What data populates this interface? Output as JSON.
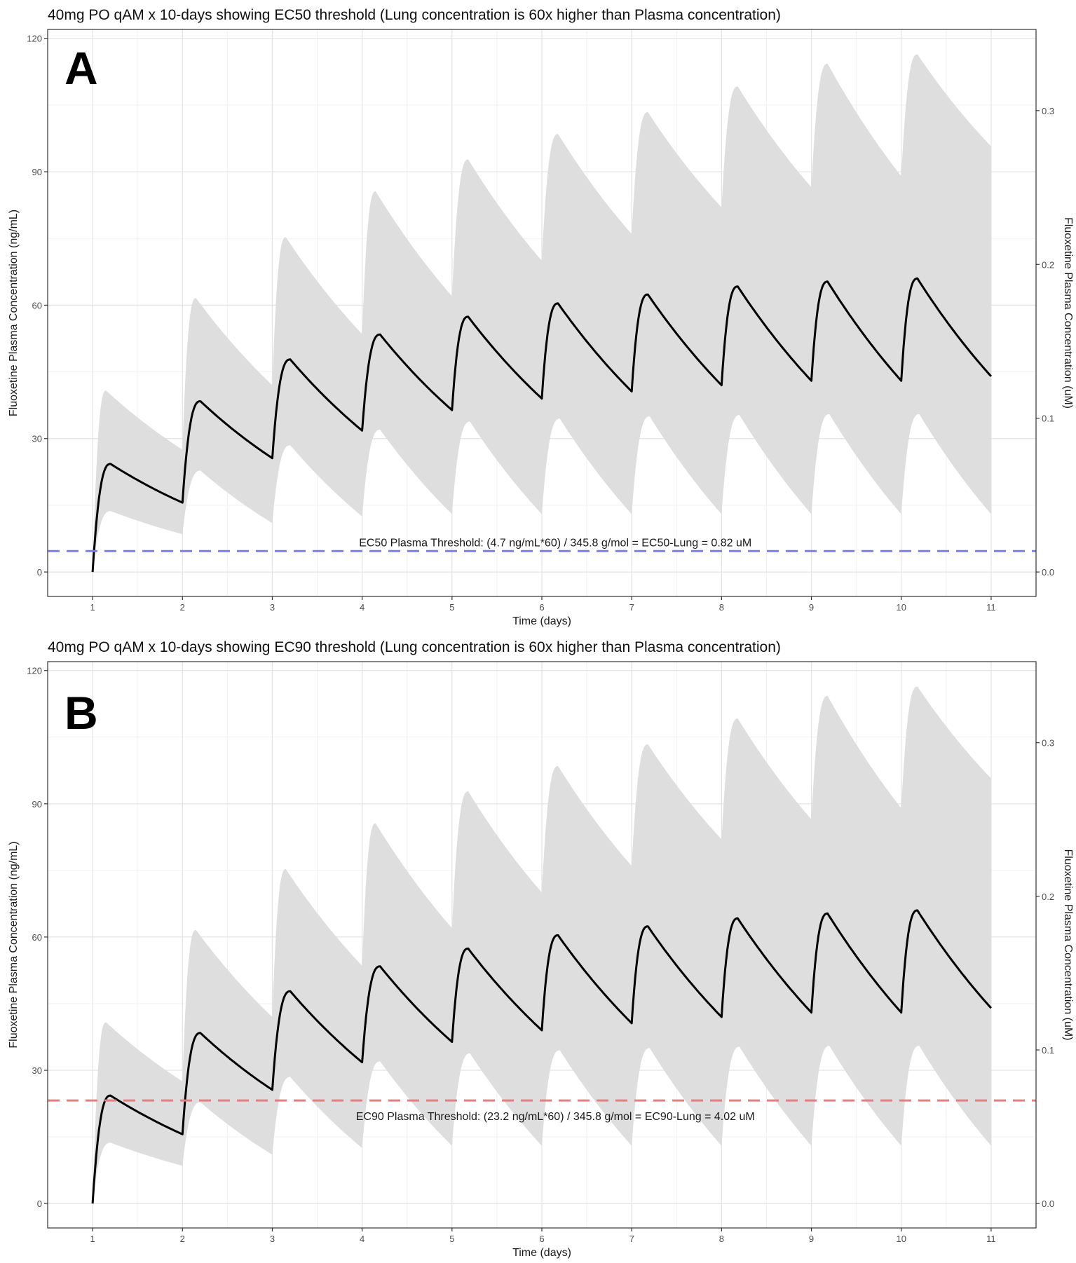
{
  "chart_data": [
    {
      "type": "line",
      "panel_letter": "A",
      "title": "40mg PO qAM x 10-days showing EC50 threshold (Lung concentration is 60x higher than Plasma concentration)",
      "xlabel": "Time (days)",
      "ylabel": "Fluoxetine Plasma Concentration (ng/mL)",
      "y2label": "Fluoxetine Plasma Concentration (uM)",
      "xlim": [
        0.5,
        11.5
      ],
      "ylim": [
        -5.5,
        122
      ],
      "y2lim": [
        -0.0159,
        0.3528
      ],
      "x_ticks": [
        1,
        2,
        3,
        4,
        5,
        6,
        7,
        8,
        9,
        10,
        11
      ],
      "y_ticks": [
        0,
        30,
        60,
        90,
        120
      ],
      "y2_ticks": [
        0.0,
        0.1,
        0.2,
        0.3
      ],
      "y2_tick_labels": [
        "0.0",
        "0.1",
        "0.2",
        "0.3"
      ],
      "grid": true,
      "series": [
        {
          "role": "median",
          "color": "#000000",
          "peaks": [
            [
              1.2,
              24.3
            ],
            [
              2.2,
              38.4
            ],
            [
              3.2,
              47.8
            ],
            [
              4.2,
              53.4
            ],
            [
              5.18,
              57.4
            ],
            [
              6.18,
              60.4
            ],
            [
              7.18,
              62.4
            ],
            [
              8.18,
              64.2
            ],
            [
              9.18,
              65.3
            ],
            [
              10.18,
              66.0
            ]
          ],
          "troughs": [
            [
              1.0,
              0.0
            ],
            [
              2.0,
              15.6
            ],
            [
              3.0,
              25.6
            ],
            [
              4.0,
              31.8
            ],
            [
              5.0,
              36.4
            ],
            [
              6.0,
              39.0
            ],
            [
              7.0,
              40.6
            ],
            [
              8.0,
              42.0
            ],
            [
              9.0,
              43.0
            ],
            [
              10.0,
              43.0
            ],
            [
              11.0,
              44.0
            ]
          ]
        },
        {
          "role": "upper bound of shaded interval",
          "color": "#dcdcdc",
          "peaks": [
            [
              1.15,
              40.8
            ],
            [
              2.15,
              61.6
            ],
            [
              3.15,
              75.3
            ],
            [
              4.15,
              85.6
            ],
            [
              5.18,
              92.8
            ],
            [
              6.18,
              98.5
            ],
            [
              7.18,
              103.4
            ],
            [
              8.18,
              109.2
            ],
            [
              9.18,
              114.3
            ],
            [
              10.18,
              116.4
            ]
          ],
          "troughs": [
            [
              1.0,
              0.0
            ],
            [
              2.0,
              27.5
            ],
            [
              3.0,
              42.0
            ],
            [
              4.0,
              53.5
            ],
            [
              5.0,
              62.0
            ],
            [
              6.0,
              70.0
            ],
            [
              7.0,
              76.0
            ],
            [
              8.0,
              82.0
            ],
            [
              9.0,
              86.5
            ],
            [
              10.0,
              89.0
            ],
            [
              11.0,
              95.7
            ]
          ]
        },
        {
          "role": "lower bound of shaded interval",
          "color": "#dcdcdc",
          "peaks": [
            [
              1.2,
              13.7
            ],
            [
              2.2,
              22.8
            ],
            [
              3.2,
              28.5
            ],
            [
              4.2,
              32.0
            ],
            [
              5.2,
              33.8
            ],
            [
              6.2,
              34.5
            ],
            [
              7.2,
              35.0
            ],
            [
              8.2,
              35.3
            ],
            [
              9.2,
              35.5
            ],
            [
              10.2,
              35.5
            ]
          ],
          "troughs": [
            [
              1.0,
              0.0
            ],
            [
              2.0,
              8.5
            ],
            [
              3.0,
              11.0
            ],
            [
              4.0,
              12.5
            ],
            [
              5.0,
              13.0
            ],
            [
              6.0,
              13.0
            ],
            [
              7.0,
              13.0
            ],
            [
              8.0,
              13.0
            ],
            [
              9.0,
              13.0
            ],
            [
              10.0,
              13.0
            ],
            [
              11.0,
              13.0
            ]
          ]
        }
      ],
      "threshold": {
        "value": 4.7,
        "color": "#7b7bf7",
        "style": "dashed",
        "label": "EC50 Plasma Threshold: (4.7 ng/mL*60) / 345.8 g/mol = EC50-Lung = 0.82 uM",
        "label_side": "above"
      }
    },
    {
      "type": "line",
      "panel_letter": "B",
      "title": "40mg PO qAM x 10-days showing EC90 threshold (Lung concentration is 60x higher than Plasma concentration)",
      "xlabel": "Time (days)",
      "ylabel": "Fluoxetine Plasma Concentration (ng/mL)",
      "y2label": "Fluoxetine Plasma Concentration (uM)",
      "xlim": [
        0.5,
        11.5
      ],
      "ylim": [
        -5.5,
        122
      ],
      "y2lim": [
        -0.0159,
        0.3528
      ],
      "x_ticks": [
        1,
        2,
        3,
        4,
        5,
        6,
        7,
        8,
        9,
        10,
        11
      ],
      "y_ticks": [
        0,
        30,
        60,
        90,
        120
      ],
      "y2_ticks": [
        0.0,
        0.1,
        0.2,
        0.3
      ],
      "y2_tick_labels": [
        "0.0",
        "0.1",
        "0.2",
        "0.3"
      ],
      "grid": true,
      "series": [
        {
          "role": "median",
          "color": "#000000",
          "peaks": [
            [
              1.2,
              24.3
            ],
            [
              2.2,
              38.4
            ],
            [
              3.2,
              47.8
            ],
            [
              4.2,
              53.4
            ],
            [
              5.18,
              57.4
            ],
            [
              6.18,
              60.4
            ],
            [
              7.18,
              62.4
            ],
            [
              8.18,
              64.2
            ],
            [
              9.18,
              65.3
            ],
            [
              10.18,
              66.0
            ]
          ],
          "troughs": [
            [
              1.0,
              0.0
            ],
            [
              2.0,
              15.6
            ],
            [
              3.0,
              25.6
            ],
            [
              4.0,
              31.8
            ],
            [
              5.0,
              36.4
            ],
            [
              6.0,
              39.0
            ],
            [
              7.0,
              40.6
            ],
            [
              8.0,
              42.0
            ],
            [
              9.0,
              43.0
            ],
            [
              10.0,
              43.0
            ],
            [
              11.0,
              44.0
            ]
          ]
        },
        {
          "role": "upper bound of shaded interval",
          "color": "#dcdcdc",
          "peaks": [
            [
              1.15,
              40.8
            ],
            [
              2.15,
              61.6
            ],
            [
              3.15,
              75.3
            ],
            [
              4.15,
              85.6
            ],
            [
              5.18,
              92.8
            ],
            [
              6.18,
              98.5
            ],
            [
              7.18,
              103.4
            ],
            [
              8.18,
              109.2
            ],
            [
              9.18,
              114.3
            ],
            [
              10.18,
              116.4
            ]
          ],
          "troughs": [
            [
              1.0,
              0.0
            ],
            [
              2.0,
              27.5
            ],
            [
              3.0,
              42.0
            ],
            [
              4.0,
              53.5
            ],
            [
              5.0,
              62.0
            ],
            [
              6.0,
              70.0
            ],
            [
              7.0,
              76.0
            ],
            [
              8.0,
              82.0
            ],
            [
              9.0,
              86.5
            ],
            [
              10.0,
              89.0
            ],
            [
              11.0,
              95.7
            ]
          ]
        },
        {
          "role": "lower bound of shaded interval",
          "color": "#dcdcdc",
          "peaks": [
            [
              1.2,
              13.7
            ],
            [
              2.2,
              22.8
            ],
            [
              3.2,
              28.5
            ],
            [
              4.2,
              32.0
            ],
            [
              5.2,
              33.8
            ],
            [
              6.2,
              34.5
            ],
            [
              7.2,
              35.0
            ],
            [
              8.2,
              35.3
            ],
            [
              9.2,
              35.5
            ],
            [
              10.2,
              35.5
            ]
          ],
          "troughs": [
            [
              1.0,
              0.0
            ],
            [
              2.0,
              8.5
            ],
            [
              3.0,
              11.0
            ],
            [
              4.0,
              12.5
            ],
            [
              5.0,
              13.0
            ],
            [
              6.0,
              13.0
            ],
            [
              7.0,
              13.0
            ],
            [
              8.0,
              13.0
            ],
            [
              9.0,
              13.0
            ],
            [
              10.0,
              13.0
            ],
            [
              11.0,
              13.0
            ]
          ]
        }
      ],
      "threshold": {
        "value": 23.2,
        "color": "#ee7b7b",
        "style": "dashed",
        "label": "EC90 Plasma Threshold: (23.2 ng/mL*60) / 345.8 g/mol = EC90-Lung = 4.02 uM",
        "label_side": "below"
      }
    }
  ]
}
